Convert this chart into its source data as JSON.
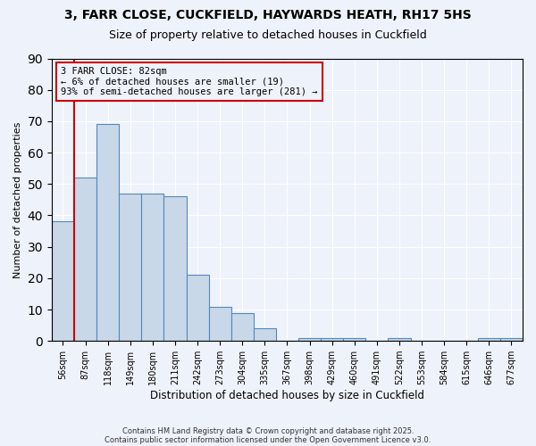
{
  "title_line1": "3, FARR CLOSE, CUCKFIELD, HAYWARDS HEATH, RH17 5HS",
  "title_line2": "Size of property relative to detached houses in Cuckfield",
  "xlabel": "Distribution of detached houses by size in Cuckfield",
  "ylabel": "Number of detached properties",
  "bar_labels": [
    "56sqm",
    "87sqm",
    "118sqm",
    "149sqm",
    "180sqm",
    "211sqm",
    "242sqm",
    "273sqm",
    "304sqm",
    "335sqm",
    "367sqm",
    "398sqm",
    "429sqm",
    "460sqm",
    "491sqm",
    "522sqm",
    "553sqm",
    "584sqm",
    "615sqm",
    "646sqm",
    "677sqm"
  ],
  "bar_values": [
    38,
    52,
    69,
    47,
    47,
    46,
    21,
    11,
    9,
    4,
    0,
    1,
    1,
    1,
    0,
    1,
    0,
    0,
    0,
    1,
    1
  ],
  "bar_color": "#c8d8e8",
  "bar_edge_color": "#5588bb",
  "annotation_box_text": "3 FARR CLOSE: 82sqm\n← 6% of detached houses are smaller (19)\n93% of semi-detached houses are larger (281) →",
  "red_line_color": "#cc0000",
  "background_color": "#eef2fa",
  "footer_text1": "Contains HM Land Registry data © Crown copyright and database right 2025.",
  "footer_text2": "Contains public sector information licensed under the Open Government Licence v3.0.",
  "ylim": [
    0,
    90
  ],
  "yticks": [
    0,
    10,
    20,
    30,
    40,
    50,
    60,
    70,
    80,
    90
  ]
}
